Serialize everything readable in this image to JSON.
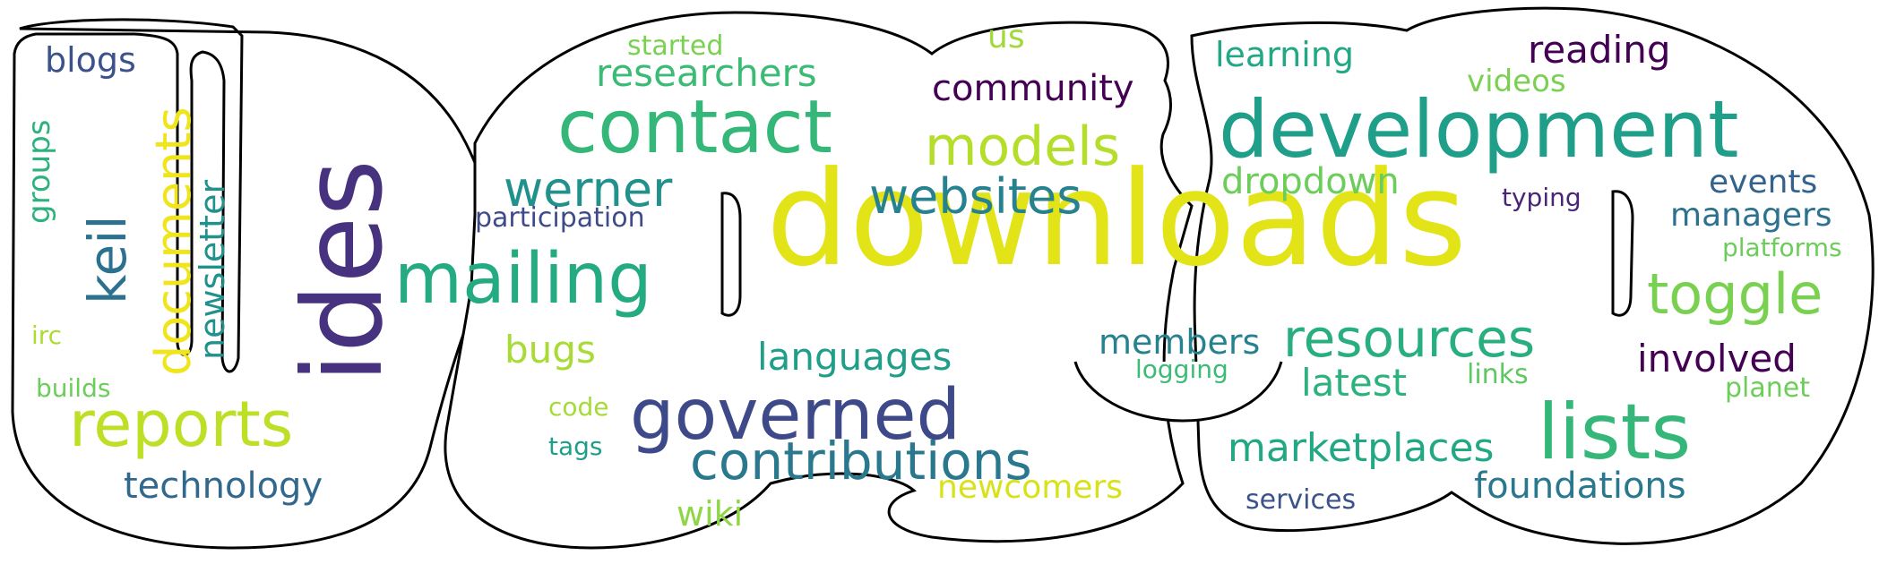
{
  "colors": {
    "background": "#ffffff",
    "outline": "#000000"
  },
  "words": [
    {
      "text": "downloads",
      "color": "#e2e418"
    },
    {
      "text": "ides",
      "color": "#46327e"
    },
    {
      "text": "development",
      "color": "#1f9e89"
    },
    {
      "text": "contact",
      "color": "#35b779"
    },
    {
      "text": "mailing",
      "color": "#25ab82"
    },
    {
      "text": "governed",
      "color": "#3e4989"
    },
    {
      "text": "reports",
      "color": "#bddf26"
    },
    {
      "text": "lists",
      "color": "#35b779"
    },
    {
      "text": "resources",
      "color": "#29af7f"
    },
    {
      "text": "contributions",
      "color": "#2a788e"
    },
    {
      "text": "toggle",
      "color": "#7ad151"
    },
    {
      "text": "websites",
      "color": "#26828e"
    },
    {
      "text": "models",
      "color": "#b5de2b"
    },
    {
      "text": "werner",
      "color": "#21918c"
    },
    {
      "text": "keil",
      "color": "#2c728e"
    },
    {
      "text": "documents",
      "color": "#f0e51c"
    },
    {
      "text": "marketplaces",
      "color": "#22a884"
    },
    {
      "text": "foundations",
      "color": "#2a788e"
    },
    {
      "text": "researchers",
      "color": "#3bbb75"
    },
    {
      "text": "community",
      "color": "#440154"
    },
    {
      "text": "reading",
      "color": "#440154"
    },
    {
      "text": "learning",
      "color": "#22a884"
    },
    {
      "text": "dropdown",
      "color": "#6ccd5a"
    },
    {
      "text": "languages",
      "color": "#1f9e89"
    },
    {
      "text": "technology",
      "color": "#31688e"
    },
    {
      "text": "newsletter",
      "color": "#21918c"
    },
    {
      "text": "involved",
      "color": "#440154"
    },
    {
      "text": "latest",
      "color": "#2db27d"
    },
    {
      "text": "bugs",
      "color": "#a8db34"
    },
    {
      "text": "members",
      "color": "#26828e"
    },
    {
      "text": "newcomers",
      "color": "#d8e219"
    },
    {
      "text": "events",
      "color": "#33638d"
    },
    {
      "text": "managers",
      "color": "#2c728e"
    },
    {
      "text": "blogs",
      "color": "#3b528b"
    },
    {
      "text": "videos",
      "color": "#7ad151"
    },
    {
      "text": "wiki",
      "color": "#8ed645"
    },
    {
      "text": "groups",
      "color": "#2db27d"
    },
    {
      "text": "participation",
      "color": "#3e4a89"
    },
    {
      "text": "services",
      "color": "#3b528b"
    },
    {
      "text": "started",
      "color": "#7ad151"
    },
    {
      "text": "us",
      "color": "#a0da39"
    },
    {
      "text": "typing",
      "color": "#482576"
    },
    {
      "text": "platforms",
      "color": "#6ccd5a"
    },
    {
      "text": "planet",
      "color": "#6ccd5a"
    },
    {
      "text": "links",
      "color": "#5ec962"
    },
    {
      "text": "logging",
      "color": "#3bbb75"
    },
    {
      "text": "code",
      "color": "#a5db36"
    },
    {
      "text": "tags",
      "color": "#1f9e89"
    },
    {
      "text": "irc",
      "color": "#addc30"
    },
    {
      "text": "builds",
      "color": "#6ccd5a"
    }
  ]
}
